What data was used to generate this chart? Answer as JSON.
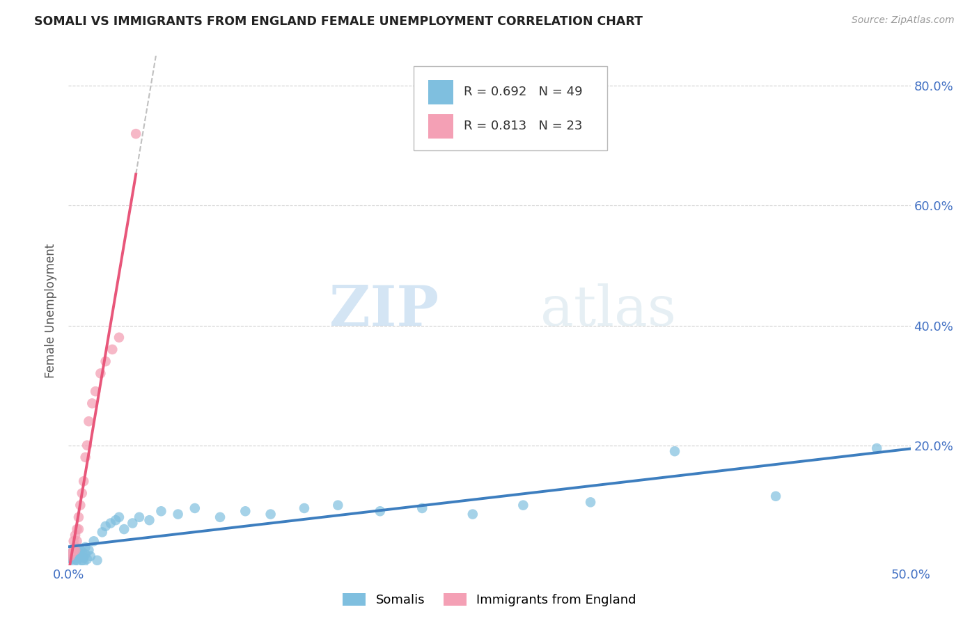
{
  "title": "SOMALI VS IMMIGRANTS FROM ENGLAND FEMALE UNEMPLOYMENT CORRELATION CHART",
  "source": "Source: ZipAtlas.com",
  "ylabel": "Female Unemployment",
  "xlim": [
    0.0,
    0.5
  ],
  "ylim": [
    0.0,
    0.85
  ],
  "somali_color": "#7fbfdf",
  "england_color": "#f4a0b5",
  "somali_line_color": "#3d7ebf",
  "england_line_color": "#e8567a",
  "trendline_ext_color": "#c0c0c0",
  "legend_R_somali": "0.692",
  "legend_N_somali": "49",
  "legend_R_england": "0.813",
  "legend_N_england": "23",
  "watermark_zip": "ZIP",
  "watermark_atlas": "atlas",
  "somali_x": [
    0.001,
    0.002,
    0.002,
    0.003,
    0.003,
    0.004,
    0.004,
    0.005,
    0.005,
    0.006,
    0.006,
    0.007,
    0.007,
    0.008,
    0.008,
    0.009,
    0.009,
    0.01,
    0.01,
    0.011,
    0.012,
    0.013,
    0.015,
    0.017,
    0.02,
    0.022,
    0.025,
    0.028,
    0.03,
    0.033,
    0.038,
    0.042,
    0.048,
    0.055,
    0.065,
    0.075,
    0.09,
    0.105,
    0.12,
    0.14,
    0.16,
    0.185,
    0.21,
    0.24,
    0.27,
    0.31,
    0.36,
    0.42,
    0.48
  ],
  "somali_y": [
    0.015,
    0.01,
    0.02,
    0.005,
    0.025,
    0.01,
    0.03,
    0.015,
    0.008,
    0.02,
    0.012,
    0.025,
    0.018,
    0.008,
    0.022,
    0.012,
    0.005,
    0.018,
    0.03,
    0.01,
    0.025,
    0.015,
    0.04,
    0.008,
    0.055,
    0.065,
    0.07,
    0.075,
    0.08,
    0.06,
    0.07,
    0.08,
    0.075,
    0.09,
    0.085,
    0.095,
    0.08,
    0.09,
    0.085,
    0.095,
    0.1,
    0.09,
    0.095,
    0.085,
    0.1,
    0.105,
    0.19,
    0.115,
    0.195
  ],
  "england_x": [
    0.001,
    0.002,
    0.003,
    0.003,
    0.004,
    0.004,
    0.005,
    0.005,
    0.006,
    0.006,
    0.007,
    0.008,
    0.009,
    0.01,
    0.011,
    0.012,
    0.014,
    0.016,
    0.019,
    0.022,
    0.026,
    0.03,
    0.04
  ],
  "england_y": [
    0.015,
    0.02,
    0.025,
    0.04,
    0.025,
    0.05,
    0.06,
    0.04,
    0.08,
    0.06,
    0.1,
    0.12,
    0.14,
    0.18,
    0.2,
    0.24,
    0.27,
    0.29,
    0.32,
    0.34,
    0.36,
    0.38,
    0.72
  ]
}
